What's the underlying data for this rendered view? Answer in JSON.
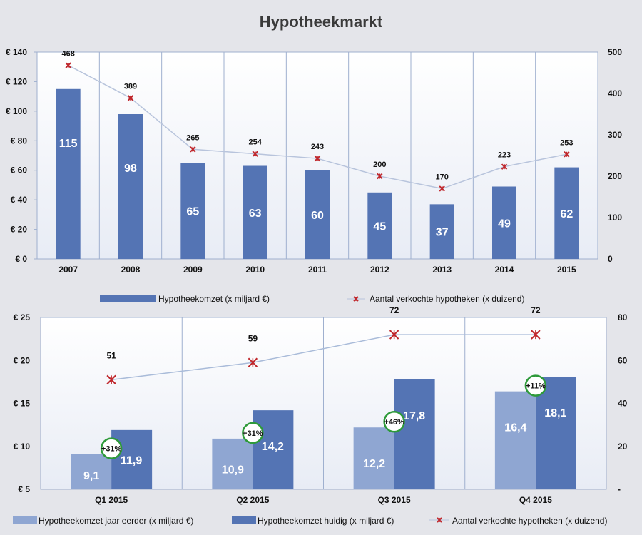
{
  "title": "Hypotheekmarkt",
  "colors": {
    "bar": "#5474b4",
    "bar_light": "#8fa6d2",
    "marker": "#c0282d",
    "line": "#b8c4dc",
    "badge": "#2e9a3a"
  },
  "chart_data": [
    {
      "type": "bar",
      "categories": [
        "2007",
        "2008",
        "2009",
        "2010",
        "2011",
        "2012",
        "2013",
        "2014",
        "2015"
      ],
      "ylim": [
        0,
        140
      ],
      "yticks": [
        "€ 0",
        "€ 20",
        "€ 40",
        "€ 60",
        "€ 80",
        "€ 100",
        "€ 120",
        "€ 140"
      ],
      "y2lim": [
        0,
        500
      ],
      "y2ticks": [
        "0",
        "100",
        "200",
        "300",
        "400",
        "500"
      ],
      "series": [
        {
          "name": "Hypotheekomzet  (x miljard €)",
          "type": "bar",
          "axis": "left",
          "values": [
            115,
            98,
            65,
            63,
            60,
            45,
            37,
            49,
            62
          ]
        },
        {
          "name": "Aantal verkochte hypotheken (x duizend)",
          "type": "line",
          "axis": "right",
          "values": [
            468,
            389,
            265,
            254,
            243,
            200,
            170,
            223,
            253
          ]
        }
      ],
      "legend": "bottom"
    },
    {
      "type": "bar",
      "categories": [
        "Q1 2015",
        "Q2 2015",
        "Q3 2015",
        "Q4 2015"
      ],
      "ylim": [
        5,
        25
      ],
      "yticks": [
        "€ 5",
        "€ 10",
        "€ 15",
        "€ 20",
        "€ 25"
      ],
      "y2lim": [
        0,
        80
      ],
      "y2ticks": [
        "-",
        "20",
        "40",
        "60",
        "80"
      ],
      "series": [
        {
          "name": "Hypotheekomzet jaar eerder (x miljard €)",
          "type": "bar",
          "axis": "left",
          "values": [
            9.1,
            10.9,
            12.2,
            16.4
          ],
          "labels": [
            "9,1",
            "10,9",
            "12,2",
            "16,4"
          ]
        },
        {
          "name": "Hypotheekomzet huidig (x miljard €)",
          "type": "bar",
          "axis": "left",
          "values": [
            11.9,
            14.2,
            17.8,
            18.1
          ],
          "labels": [
            "11,9",
            "14,2",
            "17,8",
            "18,1"
          ]
        },
        {
          "name": "Aantal verkochte hypotheken (x duizend)",
          "type": "line",
          "axis": "right",
          "values": [
            51,
            59,
            72,
            72
          ]
        }
      ],
      "annotations": [
        "+31%",
        "+31%",
        "+46%",
        "+11%"
      ],
      "legend": "bottom"
    }
  ]
}
